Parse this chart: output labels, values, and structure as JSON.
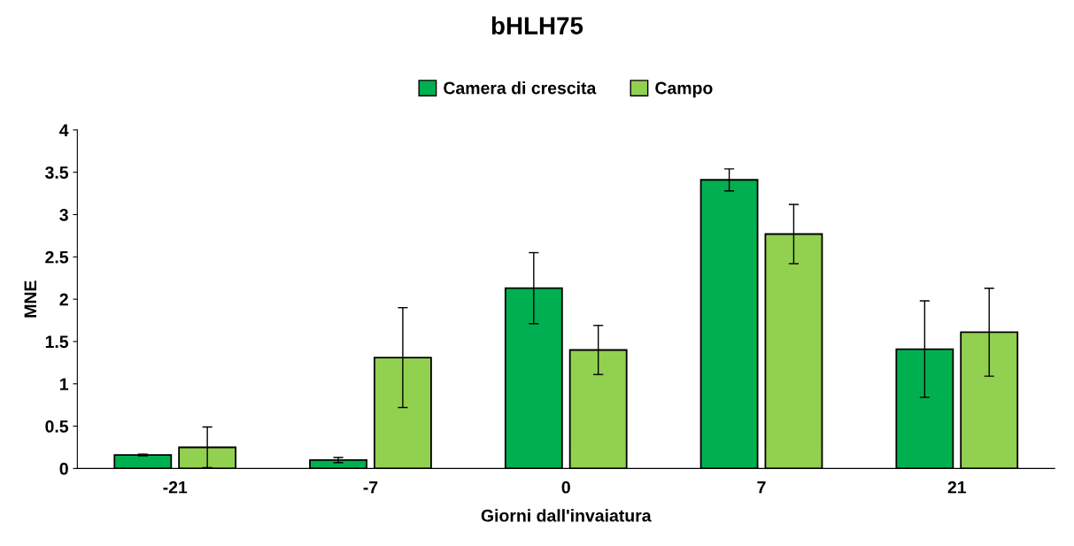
{
  "chart_data": {
    "type": "bar",
    "title": "bHLH75",
    "xlabel": "Giorni dall'invaiatura",
    "ylabel": "MNE",
    "categories": [
      "-21",
      "-7",
      "0",
      "7",
      "21"
    ],
    "series": [
      {
        "name": "Camera di crescita",
        "color": "#00b050",
        "values": [
          0.16,
          0.1,
          2.13,
          3.41,
          1.41
        ],
        "errors": [
          0.01,
          0.03,
          0.42,
          0.13,
          0.57
        ]
      },
      {
        "name": "Campo",
        "color": "#92d050",
        "values": [
          0.25,
          1.31,
          1.4,
          2.77,
          1.61
        ],
        "errors": [
          0.24,
          0.59,
          0.29,
          0.35,
          0.52
        ]
      }
    ],
    "ylim": [
      0,
      4
    ],
    "yticks": [
      0,
      0.5,
      1,
      1.5,
      2,
      2.5,
      3,
      3.5,
      4
    ],
    "grid": false,
    "legend": "top"
  }
}
